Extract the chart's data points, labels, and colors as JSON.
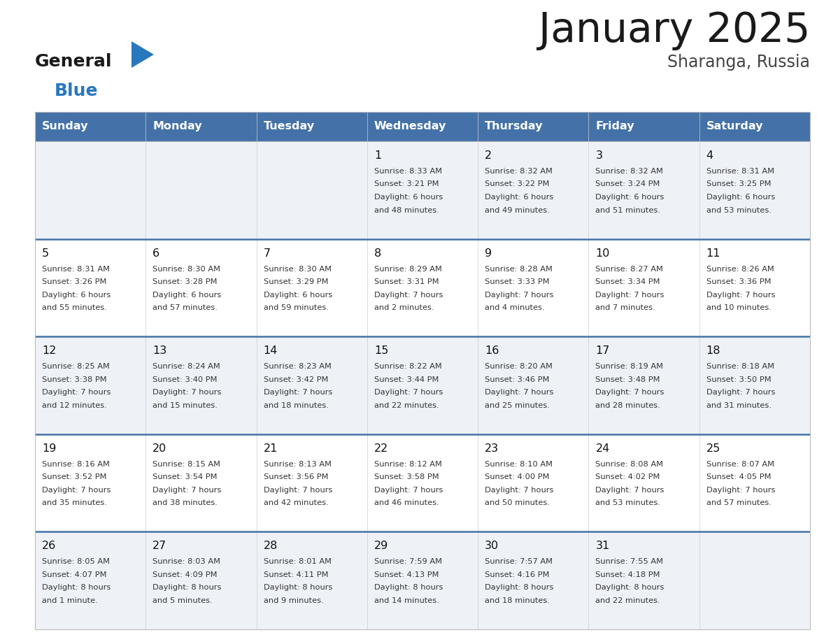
{
  "title": "January 2025",
  "subtitle": "Sharanga, Russia",
  "header_bg": "#4472a8",
  "header_text": "#ffffff",
  "row_bg_odd": "#eef2f7",
  "row_bg_even": "#ffffff",
  "day_headers": [
    "Sunday",
    "Monday",
    "Tuesday",
    "Wednesday",
    "Thursday",
    "Friday",
    "Saturday"
  ],
  "week_separator_color": "#4472a8",
  "cell_text_color": "#333333",
  "day_number_color": "#111111",
  "calendar": [
    [
      {
        "day": "",
        "sunrise": "",
        "sunset": "",
        "daylight": ""
      },
      {
        "day": "",
        "sunrise": "",
        "sunset": "",
        "daylight": ""
      },
      {
        "day": "",
        "sunrise": "",
        "sunset": "",
        "daylight": ""
      },
      {
        "day": "1",
        "sunrise": "8:33 AM",
        "sunset": "3:21 PM",
        "daylight": "6 hours\nand 48 minutes."
      },
      {
        "day": "2",
        "sunrise": "8:32 AM",
        "sunset": "3:22 PM",
        "daylight": "6 hours\nand 49 minutes."
      },
      {
        "day": "3",
        "sunrise": "8:32 AM",
        "sunset": "3:24 PM",
        "daylight": "6 hours\nand 51 minutes."
      },
      {
        "day": "4",
        "sunrise": "8:31 AM",
        "sunset": "3:25 PM",
        "daylight": "6 hours\nand 53 minutes."
      }
    ],
    [
      {
        "day": "5",
        "sunrise": "8:31 AM",
        "sunset": "3:26 PM",
        "daylight": "6 hours\nand 55 minutes."
      },
      {
        "day": "6",
        "sunrise": "8:30 AM",
        "sunset": "3:28 PM",
        "daylight": "6 hours\nand 57 minutes."
      },
      {
        "day": "7",
        "sunrise": "8:30 AM",
        "sunset": "3:29 PM",
        "daylight": "6 hours\nand 59 minutes."
      },
      {
        "day": "8",
        "sunrise": "8:29 AM",
        "sunset": "3:31 PM",
        "daylight": "7 hours\nand 2 minutes."
      },
      {
        "day": "9",
        "sunrise": "8:28 AM",
        "sunset": "3:33 PM",
        "daylight": "7 hours\nand 4 minutes."
      },
      {
        "day": "10",
        "sunrise": "8:27 AM",
        "sunset": "3:34 PM",
        "daylight": "7 hours\nand 7 minutes."
      },
      {
        "day": "11",
        "sunrise": "8:26 AM",
        "sunset": "3:36 PM",
        "daylight": "7 hours\nand 10 minutes."
      }
    ],
    [
      {
        "day": "12",
        "sunrise": "8:25 AM",
        "sunset": "3:38 PM",
        "daylight": "7 hours\nand 12 minutes."
      },
      {
        "day": "13",
        "sunrise": "8:24 AM",
        "sunset": "3:40 PM",
        "daylight": "7 hours\nand 15 minutes."
      },
      {
        "day": "14",
        "sunrise": "8:23 AM",
        "sunset": "3:42 PM",
        "daylight": "7 hours\nand 18 minutes."
      },
      {
        "day": "15",
        "sunrise": "8:22 AM",
        "sunset": "3:44 PM",
        "daylight": "7 hours\nand 22 minutes."
      },
      {
        "day": "16",
        "sunrise": "8:20 AM",
        "sunset": "3:46 PM",
        "daylight": "7 hours\nand 25 minutes."
      },
      {
        "day": "17",
        "sunrise": "8:19 AM",
        "sunset": "3:48 PM",
        "daylight": "7 hours\nand 28 minutes."
      },
      {
        "day": "18",
        "sunrise": "8:18 AM",
        "sunset": "3:50 PM",
        "daylight": "7 hours\nand 31 minutes."
      }
    ],
    [
      {
        "day": "19",
        "sunrise": "8:16 AM",
        "sunset": "3:52 PM",
        "daylight": "7 hours\nand 35 minutes."
      },
      {
        "day": "20",
        "sunrise": "8:15 AM",
        "sunset": "3:54 PM",
        "daylight": "7 hours\nand 38 minutes."
      },
      {
        "day": "21",
        "sunrise": "8:13 AM",
        "sunset": "3:56 PM",
        "daylight": "7 hours\nand 42 minutes."
      },
      {
        "day": "22",
        "sunrise": "8:12 AM",
        "sunset": "3:58 PM",
        "daylight": "7 hours\nand 46 minutes."
      },
      {
        "day": "23",
        "sunrise": "8:10 AM",
        "sunset": "4:00 PM",
        "daylight": "7 hours\nand 50 minutes."
      },
      {
        "day": "24",
        "sunrise": "8:08 AM",
        "sunset": "4:02 PM",
        "daylight": "7 hours\nand 53 minutes."
      },
      {
        "day": "25",
        "sunrise": "8:07 AM",
        "sunset": "4:05 PM",
        "daylight": "7 hours\nand 57 minutes."
      }
    ],
    [
      {
        "day": "26",
        "sunrise": "8:05 AM",
        "sunset": "4:07 PM",
        "daylight": "8 hours\nand 1 minute."
      },
      {
        "day": "27",
        "sunrise": "8:03 AM",
        "sunset": "4:09 PM",
        "daylight": "8 hours\nand 5 minutes."
      },
      {
        "day": "28",
        "sunrise": "8:01 AM",
        "sunset": "4:11 PM",
        "daylight": "8 hours\nand 9 minutes."
      },
      {
        "day": "29",
        "sunrise": "7:59 AM",
        "sunset": "4:13 PM",
        "daylight": "8 hours\nand 14 minutes."
      },
      {
        "day": "30",
        "sunrise": "7:57 AM",
        "sunset": "4:16 PM",
        "daylight": "8 hours\nand 18 minutes."
      },
      {
        "day": "31",
        "sunrise": "7:55 AM",
        "sunset": "4:18 PM",
        "daylight": "8 hours\nand 22 minutes."
      },
      {
        "day": "",
        "sunrise": "",
        "sunset": "",
        "daylight": ""
      }
    ]
  ],
  "logo_general_color": "#1a1a1a",
  "logo_blue_color": "#2878be",
  "logo_triangle_color": "#2878be",
  "fig_width": 11.88,
  "fig_height": 9.18,
  "dpi": 100
}
